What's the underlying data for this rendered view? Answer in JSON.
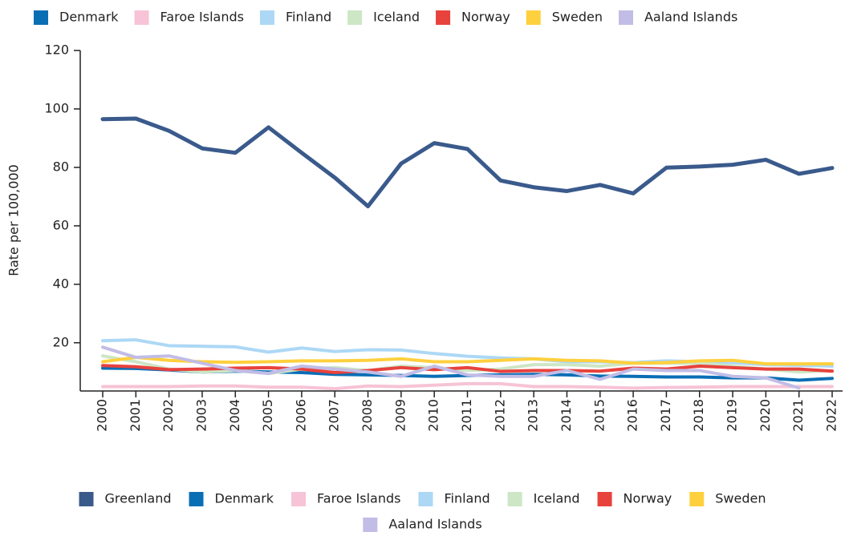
{
  "chart_data": {
    "type": "line",
    "y_label": "Rate per 100,000",
    "categories": [
      "2000",
      "2001",
      "2002",
      "2003",
      "2004",
      "2005",
      "2006",
      "2007",
      "2008",
      "2009",
      "2010",
      "2011",
      "2012",
      "2013",
      "2014",
      "2015",
      "2016",
      "2017",
      "2018",
      "2019",
      "2020",
      "2021",
      "2022"
    ],
    "series": [
      {
        "name": "Greenland",
        "color": "#3a5a8c",
        "values": [
          96.5,
          96.7,
          92.5,
          86.5,
          85,
          93.7,
          85,
          76.5,
          66.7,
          81.3,
          88.3,
          86.3,
          75.5,
          73.2,
          71.9,
          74,
          71.1,
          79.9,
          80.3,
          80.9,
          82.6,
          77.8,
          79.8
        ]
      },
      {
        "name": "Denmark",
        "color": "#0a6eb5",
        "values": [
          11.3,
          11.2,
          10.7,
          10,
          10.3,
          10,
          9.8,
          9.2,
          9,
          8.8,
          8.5,
          8.8,
          9,
          9.2,
          9,
          8.6,
          8.5,
          8.3,
          8.3,
          8,
          8,
          7.2,
          7.8
        ]
      },
      {
        "name": "Faroe Islands",
        "color": "#f7c3d6",
        "values": [
          5,
          5,
          5,
          5.2,
          5.2,
          4.8,
          4.8,
          4.3,
          5.2,
          5,
          5.5,
          6,
          6,
          5,
          5,
          4.8,
          4.5,
          4.7,
          4.8,
          5,
          5,
          5,
          5
        ]
      },
      {
        "name": "Finland",
        "color": "#acd8f5",
        "values": [
          20.7,
          21,
          19,
          18.8,
          18.6,
          16.8,
          18.2,
          17,
          17.6,
          17.5,
          16.3,
          15.4,
          14.8,
          14.5,
          13.5,
          13.5,
          13.2,
          13.8,
          13.5,
          13.2,
          12.5,
          12.3,
          12
        ]
      },
      {
        "name": "Iceland",
        "color": "#cde6c5",
        "values": [
          15.5,
          13.5,
          11,
          10,
          10.5,
          9.5,
          11,
          11.5,
          10.5,
          12,
          11.5,
          10.5,
          11,
          12.5,
          12.5,
          12,
          13,
          13,
          13,
          12,
          11,
          10,
          10.5
        ]
      },
      {
        "name": "Norway",
        "color": "#e8423d",
        "values": [
          12.2,
          11.8,
          10.8,
          11,
          11.3,
          11.5,
          11,
          9.8,
          10.5,
          11.5,
          10.8,
          11.5,
          10.2,
          10.5,
          10.5,
          10.3,
          11.3,
          11,
          12,
          11.5,
          11,
          11,
          10.3
        ]
      },
      {
        "name": "Sweden",
        "color": "#ffd03e",
        "values": [
          13.5,
          15,
          14,
          13.5,
          13.3,
          13.5,
          13.8,
          13.8,
          14,
          14.5,
          13.5,
          13.5,
          14,
          14.5,
          14,
          13.8,
          13,
          13.2,
          13.8,
          14,
          12.8,
          12.8,
          12.8
        ]
      },
      {
        "name": "Aaland Islands",
        "color": "#c1bde6",
        "values": [
          18.5,
          15,
          15.5,
          13,
          10.5,
          9.5,
          12,
          11,
          10,
          8.5,
          12,
          9,
          8.5,
          8.5,
          10.5,
          7.5,
          11,
          10.5,
          10.5,
          8.5,
          8,
          4.5,
          null
        ]
      }
    ],
    "ylim": [
      3.5,
      120
    ],
    "yticks": [
      20,
      40,
      60,
      80,
      100,
      120
    ]
  }
}
